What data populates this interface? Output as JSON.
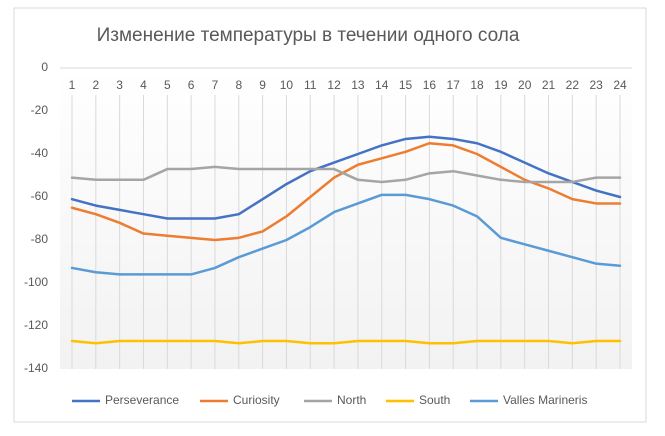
{
  "chart_data": {
    "type": "line",
    "title": "Изменение температуры в течении одного сола",
    "categories": [
      1,
      2,
      3,
      4,
      5,
      6,
      7,
      8,
      9,
      10,
      11,
      12,
      13,
      14,
      15,
      16,
      17,
      18,
      19,
      20,
      21,
      22,
      23,
      24
    ],
    "ylim": [
      -140,
      0
    ],
    "yticks": [
      0,
      -20,
      -40,
      -60,
      -80,
      -100,
      -120,
      -140
    ],
    "grid": "vertical",
    "legend": "bottom",
    "series": [
      {
        "name": "Perseverance",
        "color": "#4472c4",
        "values": [
          -61,
          -64,
          -66,
          -68,
          -70,
          -70,
          -70,
          -68,
          -61,
          -54,
          -48,
          -44,
          -40,
          -36,
          -33,
          -32,
          -33,
          -35,
          -39,
          -44,
          -49,
          -53,
          -57,
          -60
        ]
      },
      {
        "name": "Curiosity",
        "color": "#ed7d31",
        "values": [
          -65,
          -68,
          -72,
          -77,
          -78,
          -79,
          -80,
          -79,
          -76,
          -69,
          -60,
          -51,
          -45,
          -42,
          -39,
          -35,
          -36,
          -40,
          -46,
          -52,
          -56,
          -61,
          -63,
          -63
        ]
      },
      {
        "name": "North",
        "color": "#a5a5a5",
        "values": [
          -51,
          -52,
          -52,
          -52,
          -47,
          -47,
          -46,
          -47,
          -47,
          -47,
          -47,
          -47,
          -52,
          -53,
          -52,
          -49,
          -48,
          -50,
          -52,
          -53,
          -53,
          -53,
          -51,
          -51
        ]
      },
      {
        "name": "South",
        "color": "#ffc000",
        "values": [
          -127,
          -128,
          -127,
          -127,
          -127,
          -127,
          -127,
          -128,
          -127,
          -127,
          -128,
          -128,
          -127,
          -127,
          -127,
          -128,
          -128,
          -127,
          -127,
          -127,
          -127,
          -128,
          -127,
          -127
        ]
      },
      {
        "name": "Valles Marineris",
        "color": "#5b9bd5",
        "values": [
          -93,
          -95,
          -96,
          -96,
          -96,
          -96,
          -93,
          -88,
          -84,
          -80,
          -74,
          -67,
          -63,
          -59,
          -59,
          -61,
          -64,
          -69,
          -79,
          -82,
          -85,
          -88,
          -91,
          -92
        ]
      }
    ]
  }
}
